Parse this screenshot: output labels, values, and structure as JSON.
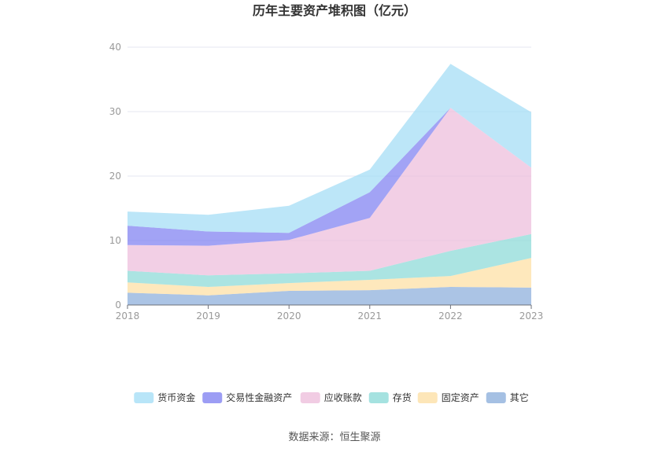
{
  "chart_data": {
    "type": "area",
    "stacked": true,
    "title": "历年主要资产堆积图（亿元）",
    "x": [
      "2018",
      "2019",
      "2020",
      "2021",
      "2022",
      "2023"
    ],
    "y_ticks": [
      "0",
      "10",
      "20",
      "30",
      "40"
    ],
    "ylim": [
      0,
      40
    ],
    "grid": true,
    "legend_position": "bottom",
    "series": [
      {
        "name": "其它",
        "color": "#8fb0dc",
        "values": [
          1.9,
          1.5,
          2.2,
          2.3,
          2.8,
          2.7
        ]
      },
      {
        "name": "固定资产",
        "color": "#fde0a6",
        "values": [
          1.6,
          1.3,
          1.2,
          1.6,
          1.7,
          4.6
        ]
      },
      {
        "name": "存货",
        "color": "#8fdbd8",
        "values": [
          1.8,
          1.8,
          1.5,
          1.4,
          3.9,
          3.7
        ]
      },
      {
        "name": "应收账款",
        "color": "#edbfdc",
        "values": [
          4.0,
          4.6,
          5.2,
          8.2,
          22.2,
          10.3
        ]
      },
      {
        "name": "交易性金融资产",
        "color": "#8384f1",
        "values": [
          3.0,
          2.2,
          1.1,
          4.0,
          0.0,
          0.0
        ]
      },
      {
        "name": "货币资金",
        "color": "#a6def6",
        "values": [
          2.2,
          2.6,
          4.2,
          3.5,
          6.8,
          8.6
        ]
      }
    ]
  },
  "legend": {
    "items": [
      "货币资金",
      "交易性金融资产",
      "应收账款",
      "存货",
      "固定资产",
      "其它"
    ]
  },
  "source_text": "数据来源：恒生聚源"
}
